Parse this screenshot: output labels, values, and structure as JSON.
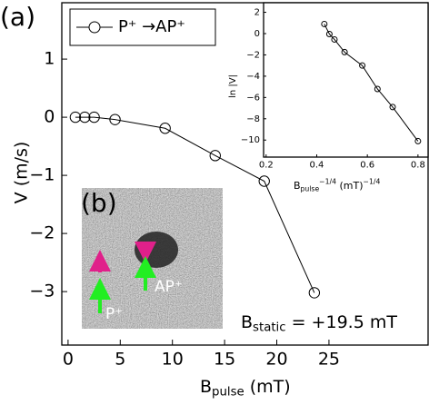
{
  "chart_data": [
    {
      "type": "line",
      "panel_label": "(a)",
      "x_label": {
        "symbol": "B",
        "sub": "pulse",
        "unit": " (mT)"
      },
      "y_label": "V (m/s)",
      "xlim": [
        -0.6,
        34.5
      ],
      "ylim": [
        -3.92,
        1.97
      ],
      "xticks": [
        0,
        5,
        10,
        15,
        20,
        25
      ],
      "yticks": [
        1,
        0,
        {
          "value": -1,
          "label": "−1"
        },
        {
          "value": -2,
          "label": "−2"
        },
        {
          "value": -3,
          "label": "−3"
        }
      ],
      "legend": "upper left",
      "series": [
        {
          "name": "P⁺ →AP⁺",
          "color": "#000000",
          "x": [
            0.7,
            1.6,
            2.5,
            4.5,
            9.3,
            14.1,
            18.8,
            23.6
          ],
          "values": [
            0,
            0,
            0,
            -0.04,
            -0.19,
            -0.66,
            -1.1,
            -3.02
          ]
        }
      ],
      "annotation": {
        "symbol": "B",
        "sub": "static",
        "text": " = +19.5 mT"
      },
      "image_inset": {
        "label": "(b)",
        "marks": [
          "P⁺",
          "AP⁺"
        ]
      }
    },
    {
      "type": "line",
      "x_label": {
        "symbol": "B",
        "sub": "pulse",
        "sup": "−1/4",
        "unit": " (mT)",
        "unit_sup": "−1/4"
      },
      "y_label": "ln |V|",
      "xlim": [
        0.19,
        0.84
      ],
      "ylim": [
        -11.6,
        2.9
      ],
      "xticks": [
        0.2,
        0.4,
        0.6,
        0.8
      ],
      "yticks": [
        2,
        0,
        {
          "value": -2,
          "label": "−2"
        },
        {
          "value": -4,
          "label": "−4"
        },
        {
          "value": -6,
          "label": "−6"
        },
        {
          "value": -8,
          "label": "−8"
        },
        {
          "value": -10,
          "label": "−10"
        }
      ],
      "series": [
        {
          "color": "#000000",
          "x": [
            0.43,
            0.45,
            0.47,
            0.51,
            0.58,
            0.64,
            0.7,
            0.8
          ],
          "values": [
            0.9,
            -0.04,
            -0.55,
            -1.74,
            -3.0,
            -5.2,
            -6.9,
            -10.1
          ]
        }
      ]
    }
  ]
}
